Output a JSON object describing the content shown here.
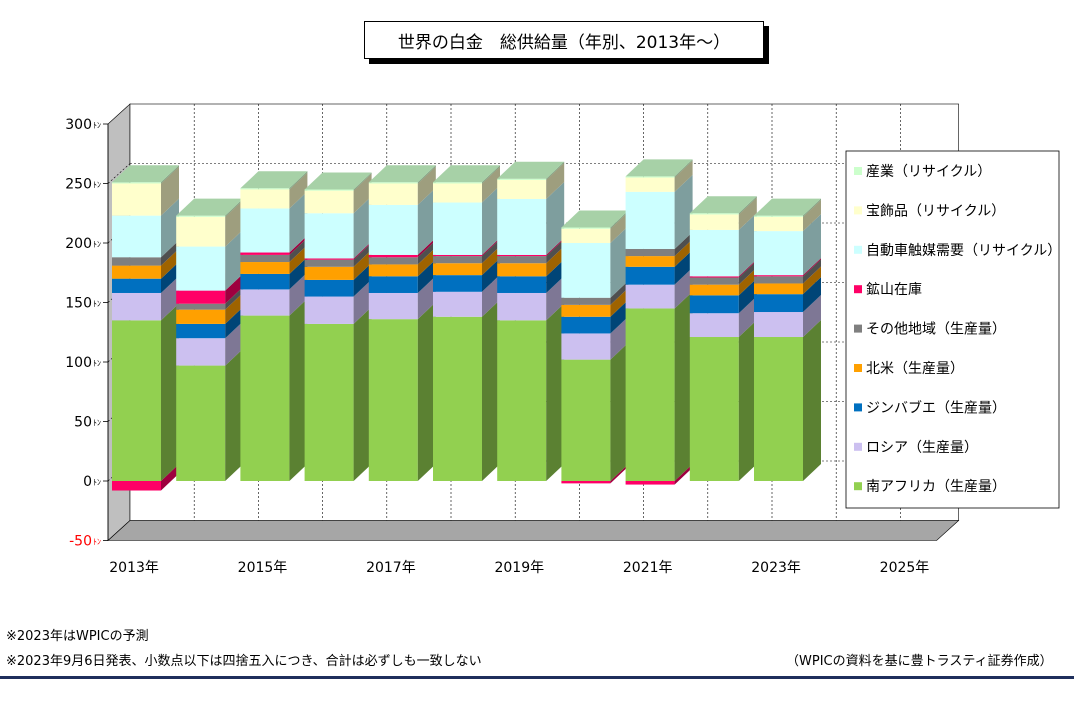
{
  "chart_data": {
    "type": "bar",
    "stacked": true,
    "title": "世界の白金　総供給量（年別、2013年～）",
    "y_unit": "ﾄﾝ",
    "ylim": [
      -50,
      300
    ],
    "yticks": [
      -50,
      0,
      50,
      100,
      150,
      200,
      250,
      300
    ],
    "x_tick_labels": [
      "2013年",
      "",
      "2015年",
      "",
      "2017年",
      "",
      "2019年",
      "",
      "2021年",
      "",
      "2023年",
      "",
      "2025年"
    ],
    "categories": [
      "2013",
      "2014",
      "2015",
      "2016",
      "2017",
      "2018",
      "2019",
      "2020",
      "2021",
      "2022",
      "2023"
    ],
    "series": [
      {
        "name": "南アフリカ（生産量）",
        "color": "#92d050",
        "values": [
          135,
          97,
          139,
          132,
          136,
          138,
          135,
          102,
          145,
          121,
          121
        ]
      },
      {
        "name": "ロシア（生産量）",
        "color": "#ccc0f0",
        "values": [
          23,
          23,
          22,
          23,
          22,
          21,
          23,
          22,
          20,
          20,
          21
        ]
      },
      {
        "name": "ジンバブエ（生産量）",
        "color": "#0070c0",
        "values": [
          12,
          12,
          13,
          14,
          14,
          14,
          14,
          14,
          15,
          15,
          15
        ]
      },
      {
        "name": "北米（生産量）",
        "color": "#ffa000",
        "values": [
          11,
          12,
          10,
          11,
          10,
          10,
          11,
          10,
          9,
          9,
          9
        ]
      },
      {
        "name": "その他地域（生産量）",
        "color": "#7f7f7f",
        "values": [
          7,
          5,
          6,
          6,
          6,
          6,
          6,
          6,
          6,
          6,
          6
        ]
      },
      {
        "name": "鉱山在庫",
        "color": "#ff0066",
        "values": [
          -8,
          11,
          2,
          1,
          2,
          1,
          1,
          -2,
          -3,
          1,
          1
        ]
      },
      {
        "name": "自動車触媒需要（リサイクル）",
        "color": "#ccffff",
        "values": [
          35,
          37,
          37,
          38,
          42,
          44,
          47,
          46,
          48,
          39,
          37
        ]
      },
      {
        "name": "宝飾品（リサイクル）",
        "color": "#ffffcc",
        "values": [
          27,
          25,
          16,
          19,
          18,
          16,
          16,
          12,
          12,
          13,
          12
        ]
      },
      {
        "name": "産業（リサイクル）",
        "color": "#ccffcc",
        "values": [
          1,
          1,
          1,
          1,
          1,
          1,
          1,
          1,
          1,
          1,
          1
        ]
      }
    ],
    "grid": true,
    "legend_position": "right"
  },
  "notes": {
    "note1": "※2023年はWPICの予測",
    "note2": "※2023年9月6日発表、小数点以下は四捨五入につき、合計は必ずしも一致しない",
    "source": "（WPICの資料を基に豊トラスティ証券作成）"
  }
}
